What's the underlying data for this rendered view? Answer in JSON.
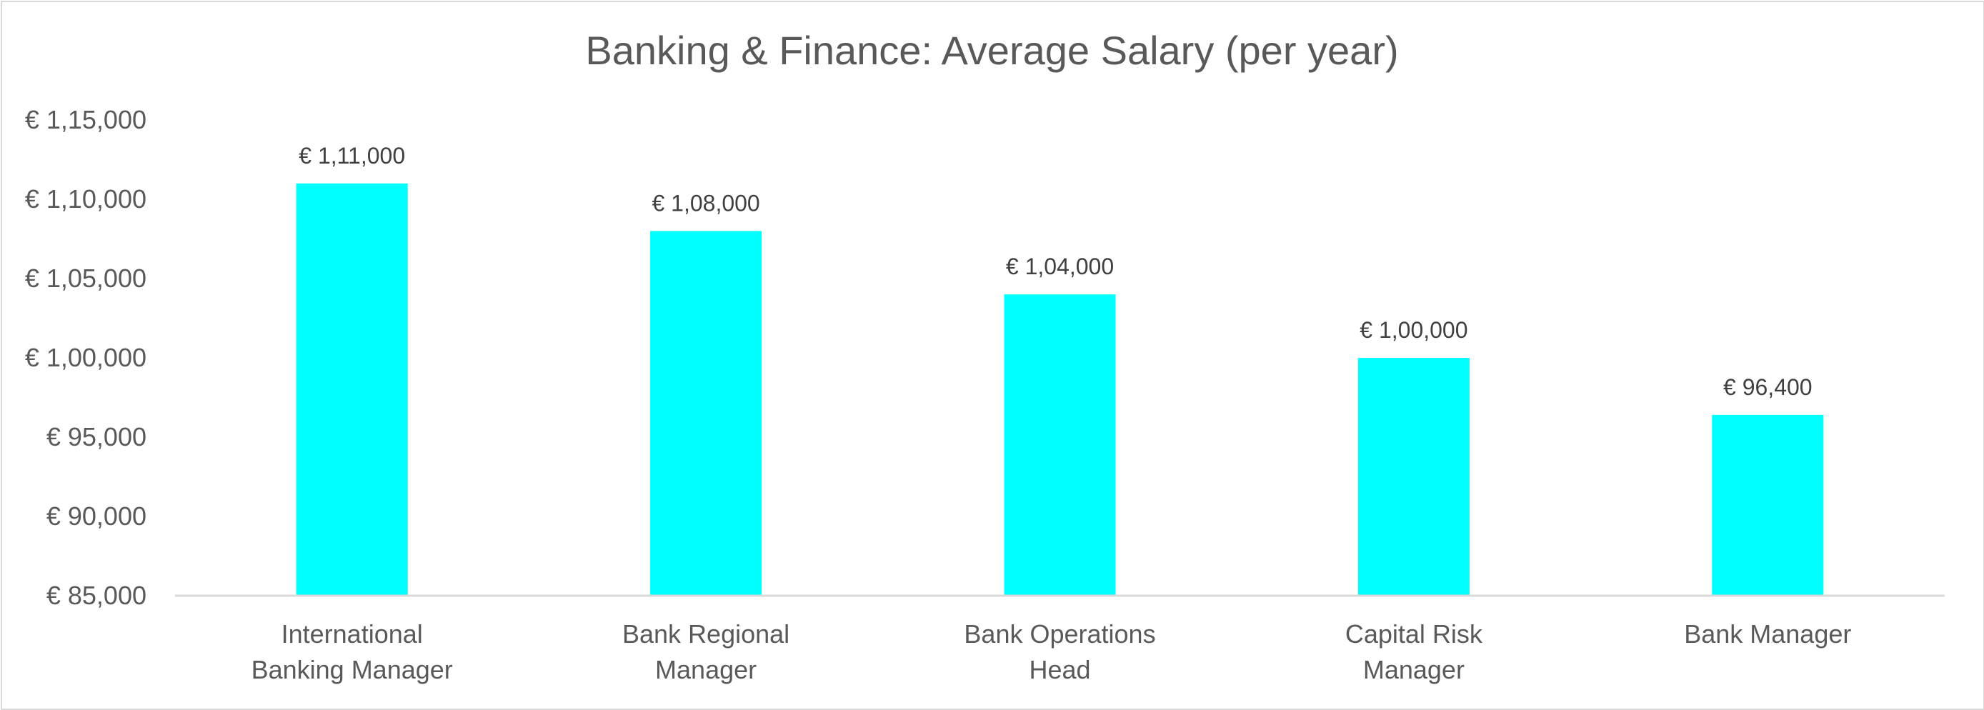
{
  "chart_data": {
    "type": "bar",
    "title": "Banking & Finance: Average Salary (per year)",
    "xlabel": "",
    "ylabel": "",
    "categories": [
      "International Banking Manager",
      "Bank Regional Manager",
      "Bank Operations Head",
      "Capital Risk Manager",
      "Bank Manager"
    ],
    "values": [
      111000,
      108000,
      104000,
      100000,
      96400
    ],
    "data_labels": [
      "€ 1,11,000",
      "€ 1,08,000",
      "€ 1,04,000",
      "€ 1,00,000",
      "€ 96,400"
    ],
    "ylim": [
      85000,
      115000
    ],
    "y_ticks": [
      85000,
      90000,
      95000,
      100000,
      105000,
      110000,
      115000
    ],
    "y_tick_labels": [
      "€ 85,000",
      "€ 90,000",
      "€ 95,000",
      "€ 1,00,000",
      "€ 1,05,000",
      "€ 1,10,000",
      "€ 1,15,000"
    ],
    "grid": false,
    "legend": "none",
    "bar_color": "#00FFFF"
  }
}
